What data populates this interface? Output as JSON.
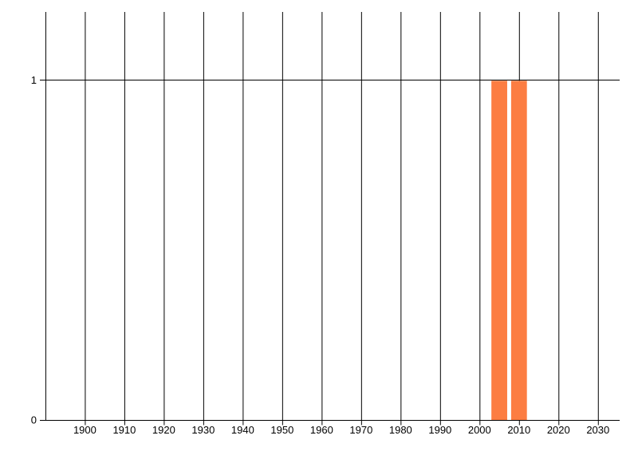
{
  "chart_data": {
    "type": "bar",
    "title": "",
    "xlabel": "",
    "ylabel": "",
    "x": [
      2005,
      2010
    ],
    "values": [
      1,
      1
    ],
    "bar_width_years": 4,
    "bar_color": "#fc7d42",
    "x_gridline_years": [
      1890,
      1900,
      1910,
      1920,
      1930,
      1940,
      1950,
      1960,
      1970,
      1980,
      1990,
      2000,
      2010,
      2020,
      2030
    ],
    "x_ticks": [
      {
        "value": 1900,
        "label": "1900"
      },
      {
        "value": 1910,
        "label": "1910"
      },
      {
        "value": 1920,
        "label": "1920"
      },
      {
        "value": 1930,
        "label": "1930"
      },
      {
        "value": 1940,
        "label": "1940"
      },
      {
        "value": 1950,
        "label": "1950"
      },
      {
        "value": 1960,
        "label": "1960"
      },
      {
        "value": 1970,
        "label": "1970"
      },
      {
        "value": 1980,
        "label": "1980"
      },
      {
        "value": 1990,
        "label": "1990"
      },
      {
        "value": 2000,
        "label": "2000"
      },
      {
        "value": 2010,
        "label": "2010"
      },
      {
        "value": 2020,
        "label": "2020"
      },
      {
        "value": 2030,
        "label": "2030"
      }
    ],
    "y_ticks": [
      {
        "value": 0,
        "label": "0"
      },
      {
        "value": 1,
        "label": "1"
      }
    ],
    "y_gridline_values": [
      0,
      1
    ],
    "xlim": [
      1888.6,
      2035.5
    ],
    "ylim": [
      0,
      1.2
    ],
    "grid": true,
    "legend_position": "none",
    "grid_color": "#000000",
    "axis_color": "#000000",
    "text_color": "#000000",
    "background_color": "#ffffff"
  }
}
